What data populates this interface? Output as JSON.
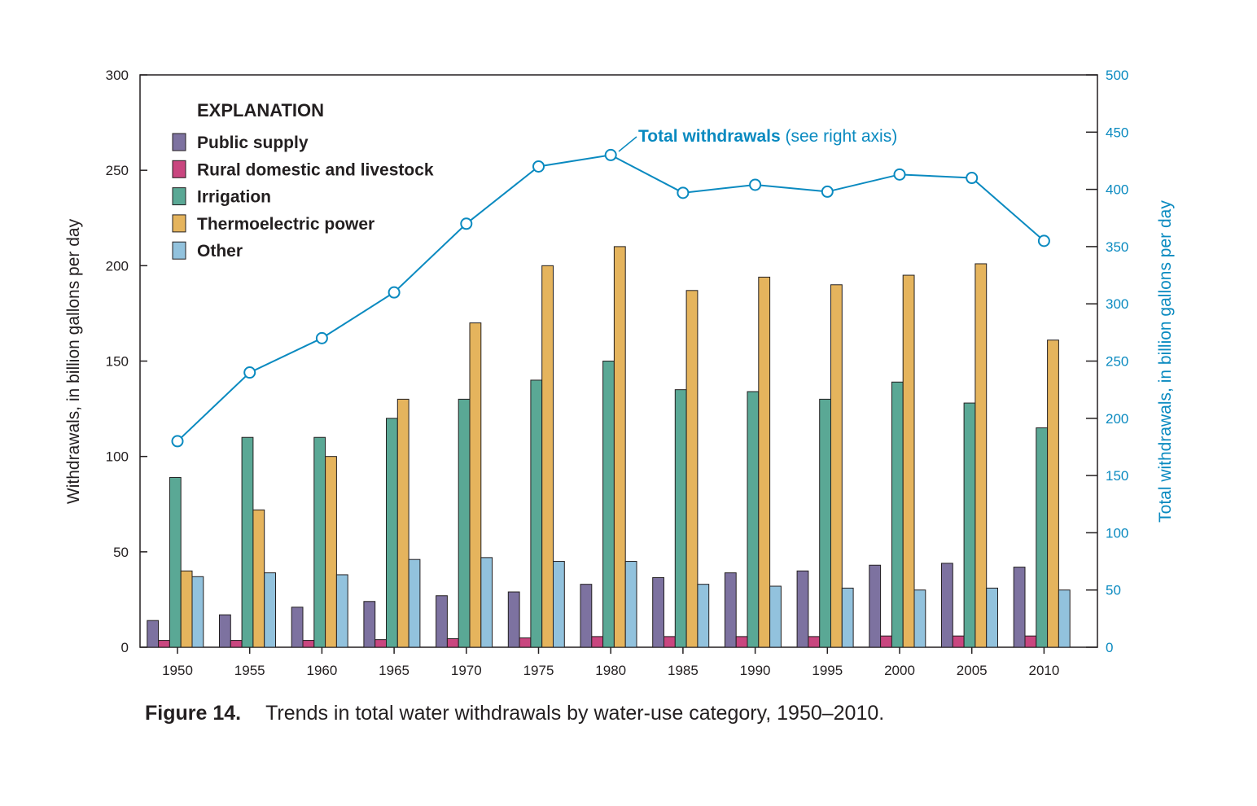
{
  "chart_data": {
    "type": "bar",
    "categories": [
      "1950",
      "1955",
      "1960",
      "1965",
      "1970",
      "1975",
      "1980",
      "1985",
      "1990",
      "1995",
      "2000",
      "2005",
      "2010"
    ],
    "ylabel": "Withdrawals, in billion gallons per day",
    "ylim": [
      0,
      300
    ],
    "yticks": [
      0,
      50,
      100,
      150,
      200,
      250,
      300
    ],
    "y2label": "Total withdrawals, in billion gallons per day",
    "y2lim": [
      0,
      500
    ],
    "y2ticks": [
      0,
      50,
      100,
      150,
      200,
      250,
      300,
      350,
      400,
      450,
      500
    ],
    "legend_title": "EXPLANATION",
    "legend_position": "top-left",
    "grid": false,
    "series": [
      {
        "name": "Public supply",
        "color": "#7d72a0",
        "values": [
          14,
          17,
          21,
          24,
          27,
          29,
          33,
          36.5,
          39,
          40,
          43,
          44,
          42
        ]
      },
      {
        "name": "Rural domestic and livestock",
        "color": "#c9467f",
        "values": [
          3.6,
          3.6,
          3.6,
          4,
          4.5,
          4.9,
          5.6,
          5.6,
          5.6,
          5.6,
          5.9,
          5.9,
          5.9
        ]
      },
      {
        "name": "Irrigation",
        "color": "#5aa895",
        "values": [
          89,
          110,
          110,
          120,
          130,
          140,
          150,
          135,
          134,
          130,
          139,
          128,
          115
        ]
      },
      {
        "name": "Thermoelectric power",
        "color": "#e5b45d",
        "values": [
          40,
          72,
          100,
          130,
          170,
          200,
          210,
          187,
          194,
          190,
          195,
          201,
          161
        ]
      },
      {
        "name": "Other",
        "color": "#92c2dd",
        "values": [
          37,
          39,
          38,
          46,
          47,
          45,
          45,
          33,
          32,
          31,
          30,
          31,
          30
        ]
      }
    ],
    "line_series": {
      "name": "Total withdrawals",
      "axis": "right",
      "color": "#0a8ac0",
      "values": [
        180,
        240,
        270,
        310,
        370,
        420,
        430,
        397,
        404,
        398,
        413,
        410,
        355
      ]
    },
    "annotation": {
      "bold": "Total withdrawals",
      "rest": " (see right axis)"
    }
  },
  "caption": {
    "label": "Figure 14.",
    "text": "Trends in total water withdrawals by water-use category, 1950–2010."
  }
}
